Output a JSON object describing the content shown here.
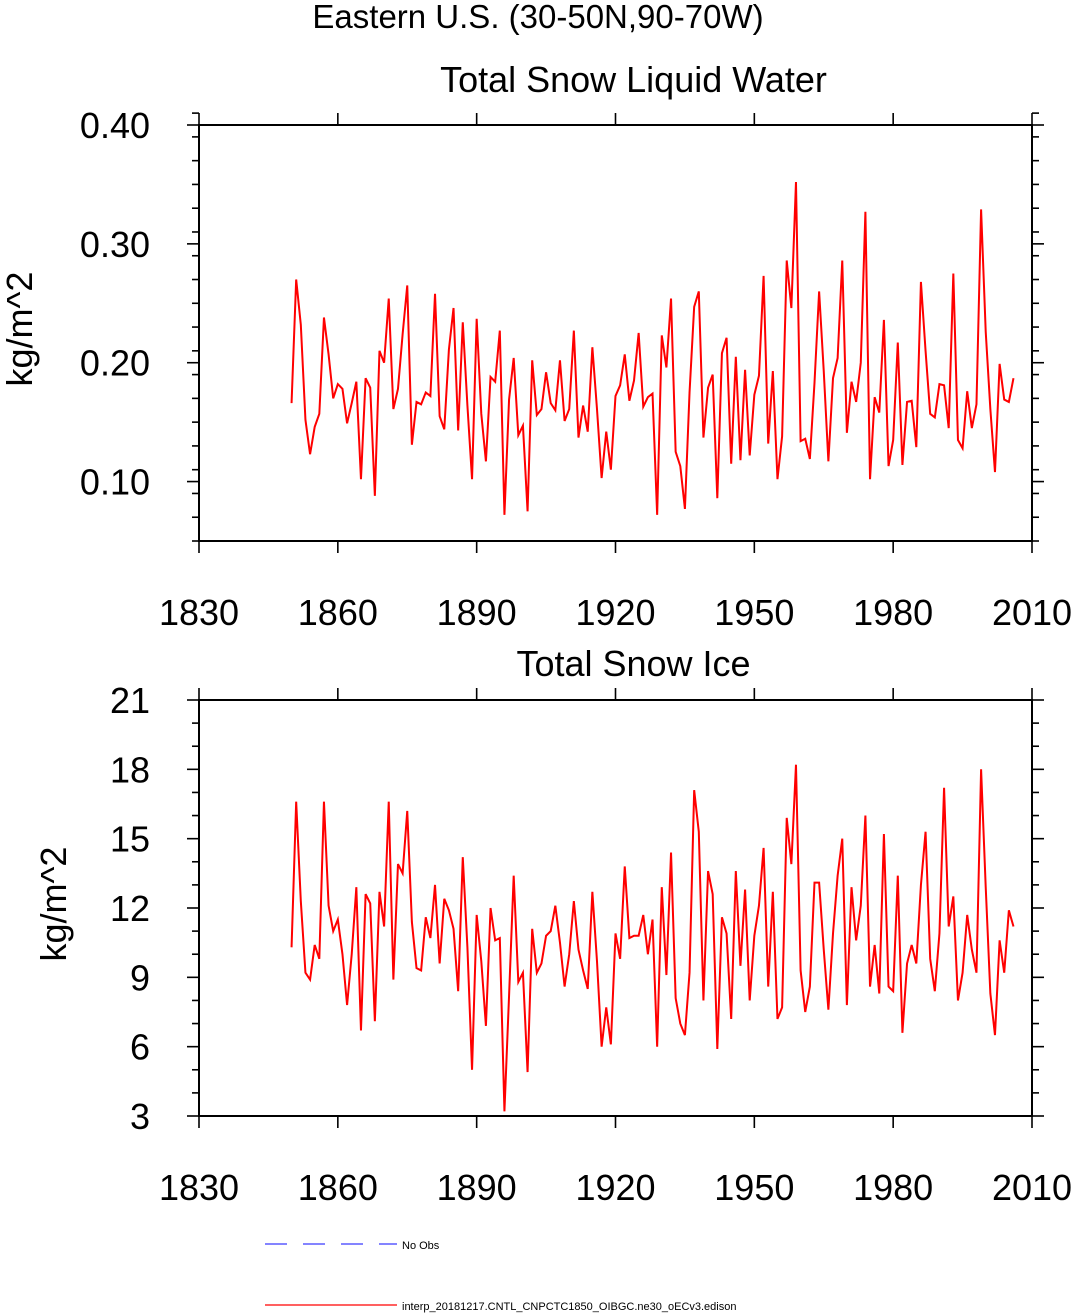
{
  "figure": {
    "suptitle": "Eastern U.S. (30-50N,90-70W)",
    "colors": {
      "model_line": "#ff0000",
      "obs_line": "#3a3aff",
      "frame": "#000000",
      "background": "#ffffff"
    },
    "legend": [
      {
        "label": "No Obs",
        "style": "dashed",
        "color": "#3a3aff"
      },
      {
        "label": "interp_20181217.CNTL_CNPCTC1850_OIBGC.ne30_oECv3.edison",
        "style": "solid",
        "color": "#ff0000"
      }
    ]
  },
  "chart_data": [
    {
      "type": "line",
      "title": "Total Snow Liquid Water",
      "xlabel": "",
      "ylabel": "kg/m^2",
      "xlim": [
        1830,
        2010
      ],
      "ylim": [
        0.05,
        0.4
      ],
      "xticks": [
        1830,
        1860,
        1890,
        1920,
        1950,
        1980,
        2010
      ],
      "xticklabels": [
        "1830",
        "1860",
        "1890",
        "1920",
        "1950",
        "1980",
        "2010"
      ],
      "yticks": [
        0.1,
        0.2,
        0.3,
        0.4
      ],
      "yticklabels": [
        "0.10",
        "0.20",
        "0.30",
        "0.40"
      ],
      "x_start": 1850,
      "x_step": 1,
      "series": [
        {
          "name": "interp_20181217.CNTL_CNPCTC1850_OIBGC.ne30_oECv3.edison",
          "color": "#ff0000",
          "values": [
            0.166,
            0.27,
            0.232,
            0.152,
            0.123,
            0.146,
            0.157,
            0.238,
            0.207,
            0.17,
            0.182,
            0.178,
            0.149,
            0.166,
            0.184,
            0.102,
            0.187,
            0.179,
            0.088,
            0.21,
            0.2,
            0.254,
            0.161,
            0.178,
            0.224,
            0.265,
            0.131,
            0.167,
            0.165,
            0.175,
            0.172,
            0.258,
            0.155,
            0.144,
            0.211,
            0.246,
            0.143,
            0.234,
            0.164,
            0.102,
            0.237,
            0.157,
            0.117,
            0.188,
            0.184,
            0.227,
            0.072,
            0.169,
            0.204,
            0.139,
            0.147,
            0.075,
            0.202,
            0.156,
            0.161,
            0.192,
            0.166,
            0.16,
            0.202,
            0.151,
            0.161,
            0.227,
            0.137,
            0.164,
            0.142,
            0.213,
            0.161,
            0.103,
            0.142,
            0.11,
            0.172,
            0.181,
            0.207,
            0.168,
            0.185,
            0.225,
            0.163,
            0.171,
            0.174,
            0.072,
            0.223,
            0.196,
            0.254,
            0.125,
            0.113,
            0.077,
            0.175,
            0.247,
            0.26,
            0.137,
            0.179,
            0.19,
            0.086,
            0.208,
            0.221,
            0.115,
            0.205,
            0.118,
            0.194,
            0.122,
            0.173,
            0.189,
            0.273,
            0.132,
            0.193,
            0.102,
            0.138,
            0.286,
            0.246,
            0.352,
            0.134,
            0.136,
            0.119,
            0.183,
            0.26,
            0.193,
            0.117,
            0.187,
            0.204,
            0.286,
            0.141,
            0.184,
            0.167,
            0.2,
            0.327,
            0.102,
            0.171,
            0.158,
            0.236,
            0.113,
            0.135,
            0.217,
            0.114,
            0.167,
            0.168,
            0.129,
            0.268,
            0.21,
            0.157,
            0.154,
            0.182,
            0.181,
            0.145,
            0.275,
            0.135,
            0.128,
            0.176,
            0.145,
            0.165,
            0.329,
            0.226,
            0.161,
            0.108,
            0.199,
            0.169,
            0.167,
            0.187
          ]
        }
      ]
    },
    {
      "type": "line",
      "title": "Total Snow Ice",
      "xlabel": "",
      "ylabel": "kg/m^2",
      "xlim": [
        1830,
        2010
      ],
      "ylim": [
        3,
        21
      ],
      "xticks": [
        1830,
        1860,
        1890,
        1920,
        1950,
        1980,
        2010
      ],
      "xticklabels": [
        "1830",
        "1860",
        "1890",
        "1920",
        "1950",
        "1980",
        "2010"
      ],
      "yticks": [
        3,
        6,
        9,
        12,
        15,
        18,
        21
      ],
      "yticklabels": [
        "3",
        "6",
        "9",
        "12",
        "15",
        "18",
        "21"
      ],
      "x_start": 1850,
      "x_step": 1,
      "series": [
        {
          "name": "interp_20181217.CNTL_CNPCTC1850_OIBGC.ne30_oECv3.edison",
          "color": "#ff0000",
          "values": [
            10.3,
            16.6,
            12.3,
            9.2,
            8.9,
            10.4,
            9.8,
            16.6,
            12.1,
            11.0,
            11.5,
            10.0,
            7.8,
            10.0,
            12.9,
            6.7,
            12.6,
            12.2,
            7.1,
            12.7,
            11.2,
            16.6,
            8.9,
            13.9,
            13.5,
            16.2,
            11.4,
            9.4,
            9.3,
            11.6,
            10.7,
            13.0,
            9.6,
            12.4,
            11.9,
            11.1,
            8.4,
            14.2,
            10.3,
            5.0,
            11.7,
            9.7,
            6.9,
            12.0,
            10.6,
            10.7,
            3.2,
            8.2,
            13.4,
            8.8,
            9.2,
            4.9,
            11.1,
            9.2,
            9.6,
            10.8,
            11.0,
            12.1,
            10.5,
            8.6,
            10.0,
            12.3,
            10.2,
            9.3,
            8.5,
            12.7,
            9.7,
            6.0,
            7.7,
            6.1,
            10.9,
            9.8,
            13.8,
            10.7,
            10.8,
            10.8,
            11.7,
            10.0,
            11.5,
            6.0,
            12.9,
            9.1,
            14.4,
            8.1,
            7.0,
            6.5,
            9.2,
            17.1,
            15.3,
            8.0,
            13.6,
            12.6,
            5.9,
            11.6,
            10.9,
            7.2,
            13.6,
            9.5,
            12.8,
            8.0,
            10.8,
            12.1,
            14.6,
            8.6,
            12.7,
            7.2,
            7.7,
            15.9,
            13.9,
            18.2,
            9.3,
            7.5,
            8.6,
            13.1,
            13.1,
            10.2,
            7.6,
            10.9,
            13.4,
            15.0,
            7.8,
            12.9,
            10.6,
            12.1,
            16.0,
            8.6,
            10.4,
            8.3,
            15.2,
            8.6,
            8.4,
            13.4,
            6.6,
            9.6,
            10.4,
            9.6,
            13.0,
            15.3,
            9.8,
            8.4,
            10.9,
            17.2,
            11.2,
            12.5,
            8.0,
            9.2,
            11.7,
            10.2,
            9.2,
            18.0,
            12.9,
            8.3,
            6.5,
            10.6,
            9.2,
            11.9,
            11.2
          ]
        }
      ]
    }
  ]
}
